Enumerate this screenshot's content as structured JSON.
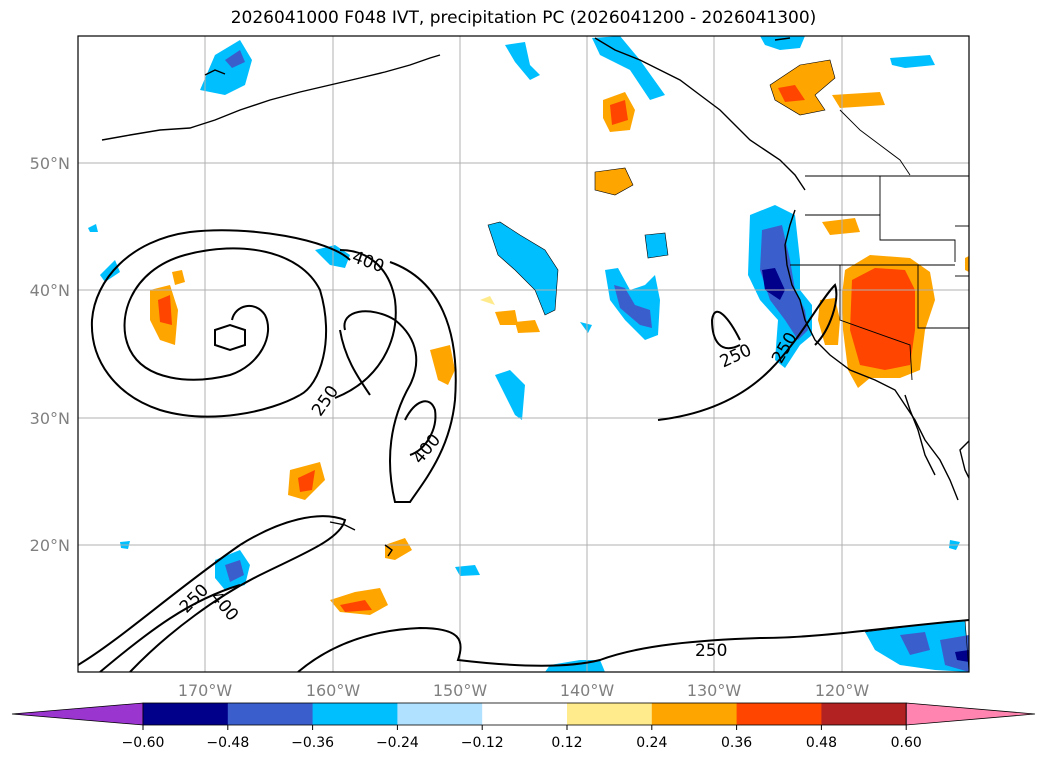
{
  "title": "2026041000 F048 IVT, precipitation PC (2026041200 - 2026041300)",
  "lat_labels": [
    "50°N",
    "40°N",
    "30°N",
    "20°N"
  ],
  "lon_labels": [
    "170°W",
    "160°W",
    "150°W",
    "140°W",
    "130°W",
    "120°W"
  ],
  "contour_levels": [
    "250",
    "400"
  ],
  "contour_labels": [
    "400",
    "250",
    "400",
    "250",
    "400",
    "250",
    "250",
    "250"
  ],
  "colorbar": {
    "ticks": [
      "−0.60",
      "−0.48",
      "−0.36",
      "−0.24",
      "−0.12",
      "0.12",
      "0.24",
      "0.36",
      "0.48",
      "0.60"
    ],
    "colors": [
      "#9b35d0",
      "#00008b",
      "#3a5fcd",
      "#00bfff",
      "#b0e2ff",
      "#ffffff",
      "#ffeb8c",
      "#ffa500",
      "#ff4500",
      "#b22222",
      "#ff85b0"
    ]
  },
  "chart_data": {
    "type": "heatmap",
    "title": "2026041000 F048 IVT, precipitation PC (2026041200 - 2026041300)",
    "projection": "cylindrical",
    "lon_range_deg": [
      -180,
      -110
    ],
    "lat_range_deg": [
      10,
      60
    ],
    "lat_ticks": [
      50,
      40,
      30,
      20
    ],
    "lon_ticks": [
      -170,
      -160,
      -150,
      -140,
      -130,
      -120
    ],
    "colorbar_ticks": [
      -0.6,
      -0.48,
      -0.36,
      -0.24,
      -0.12,
      0.12,
      0.24,
      0.36,
      0.48,
      0.6
    ],
    "contour_levels_IVT": [
      250,
      400
    ],
    "grid": true
  }
}
